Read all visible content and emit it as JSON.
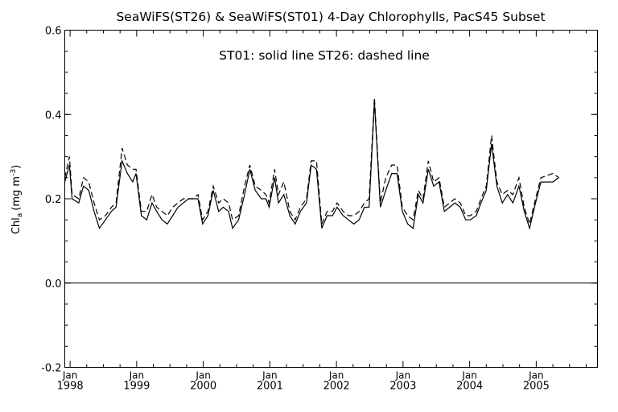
{
  "chart_data": {
    "type": "line",
    "title": "SeaWiFS(ST26) & SeaWiFS(ST01) 4-Day Chlorophylls, PacS45 Subset",
    "annotation": "ST01: solid line    ST26: dashed line",
    "ylabel_main": "Chl",
    "ylabel_sub": "a",
    "ylabel_unit": "(mg m",
    "ylabel_exp": "-3",
    "ylabel_close": ")",
    "xlim": [
      1997.92,
      2005.92
    ],
    "ylim": [
      -0.2,
      0.6
    ],
    "yticks": [
      -0.2,
      0.0,
      0.2,
      0.4,
      0.6
    ],
    "ytick_labels": [
      "-0.2",
      "0.0",
      "0.2",
      "0.4",
      "0.6"
    ],
    "xticks": [
      1998,
      1999,
      2000,
      2001,
      2002,
      2003,
      2004,
      2005
    ],
    "xtick_month_label": "Jan",
    "xtick_year_labels": [
      "1998",
      "1999",
      "2000",
      "2001",
      "2002",
      "2003",
      "2004",
      "2005"
    ],
    "reference_line_y": 0.0,
    "series": [
      {
        "name": "ST01",
        "style": "solid",
        "color": "#000000",
        "points": [
          [
            1997.92,
            0.24
          ],
          [
            1997.99,
            0.28
          ],
          [
            1998.03,
            0.2
          ],
          [
            1998.13,
            0.19
          ],
          [
            1998.2,
            0.23
          ],
          [
            1998.28,
            0.22
          ],
          [
            1998.36,
            0.17
          ],
          [
            1998.44,
            0.13
          ],
          [
            1998.53,
            0.15
          ],
          [
            1998.62,
            0.17
          ],
          [
            1998.69,
            0.18
          ],
          [
            1998.78,
            0.29
          ],
          [
            1998.86,
            0.26
          ],
          [
            1998.94,
            0.24
          ],
          [
            1998.99,
            0.26
          ],
          [
            1999.07,
            0.16
          ],
          [
            1999.15,
            0.15
          ],
          [
            1999.23,
            0.19
          ],
          [
            1999.3,
            0.17
          ],
          [
            1999.38,
            0.15
          ],
          [
            1999.46,
            0.14
          ],
          [
            1999.54,
            0.16
          ],
          [
            1999.62,
            0.18
          ],
          [
            1999.7,
            0.19
          ],
          [
            1999.78,
            0.2
          ],
          [
            1999.84,
            0.2
          ],
          [
            1999.92,
            0.2
          ],
          [
            1999.99,
            0.14
          ],
          [
            2000.07,
            0.16
          ],
          [
            2000.15,
            0.22
          ],
          [
            2000.23,
            0.17
          ],
          [
            2000.3,
            0.18
          ],
          [
            2000.38,
            0.17
          ],
          [
            2000.44,
            0.13
          ],
          [
            2000.53,
            0.15
          ],
          [
            2000.62,
            0.21
          ],
          [
            2000.7,
            0.27
          ],
          [
            2000.78,
            0.22
          ],
          [
            2000.87,
            0.2
          ],
          [
            2000.94,
            0.2
          ],
          [
            2000.99,
            0.18
          ],
          [
            2001.07,
            0.25
          ],
          [
            2001.13,
            0.19
          ],
          [
            2001.21,
            0.21
          ],
          [
            2001.3,
            0.16
          ],
          [
            2001.38,
            0.14
          ],
          [
            2001.46,
            0.17
          ],
          [
            2001.55,
            0.19
          ],
          [
            2001.62,
            0.28
          ],
          [
            2001.7,
            0.27
          ],
          [
            2001.78,
            0.13
          ],
          [
            2001.86,
            0.16
          ],
          [
            2001.94,
            0.16
          ],
          [
            2002.01,
            0.18
          ],
          [
            2002.1,
            0.16
          ],
          [
            2002.18,
            0.15
          ],
          [
            2002.26,
            0.14
          ],
          [
            2002.34,
            0.15
          ],
          [
            2002.42,
            0.18
          ],
          [
            2002.49,
            0.18
          ],
          [
            2002.57,
            0.43
          ],
          [
            2002.66,
            0.18
          ],
          [
            2002.74,
            0.22
          ],
          [
            2002.83,
            0.26
          ],
          [
            2002.91,
            0.26
          ],
          [
            2002.99,
            0.17
          ],
          [
            2003.07,
            0.14
          ],
          [
            2003.15,
            0.13
          ],
          [
            2003.23,
            0.21
          ],
          [
            2003.3,
            0.19
          ],
          [
            2003.38,
            0.27
          ],
          [
            2003.46,
            0.23
          ],
          [
            2003.54,
            0.24
          ],
          [
            2003.62,
            0.17
          ],
          [
            2003.7,
            0.18
          ],
          [
            2003.78,
            0.19
          ],
          [
            2003.86,
            0.18
          ],
          [
            2003.94,
            0.15
          ],
          [
            2004.01,
            0.15
          ],
          [
            2004.1,
            0.16
          ],
          [
            2004.17,
            0.19
          ],
          [
            2004.25,
            0.22
          ],
          [
            2004.33,
            0.33
          ],
          [
            2004.41,
            0.23
          ],
          [
            2004.49,
            0.19
          ],
          [
            2004.57,
            0.21
          ],
          [
            2004.65,
            0.19
          ],
          [
            2004.74,
            0.23
          ],
          [
            2004.82,
            0.17
          ],
          [
            2004.9,
            0.13
          ],
          [
            2004.99,
            0.19
          ],
          [
            2005.07,
            0.24
          ],
          [
            2005.25,
            0.24
          ],
          [
            2005.34,
            0.25
          ]
        ]
      },
      {
        "name": "ST26",
        "style": "dashed",
        "color": "#000000",
        "points": [
          [
            1997.92,
            0.25
          ],
          [
            1997.99,
            0.3
          ],
          [
            1998.03,
            0.21
          ],
          [
            1998.13,
            0.2
          ],
          [
            1998.2,
            0.25
          ],
          [
            1998.28,
            0.24
          ],
          [
            1998.36,
            0.19
          ],
          [
            1998.44,
            0.15
          ],
          [
            1998.53,
            0.16
          ],
          [
            1998.62,
            0.18
          ],
          [
            1998.69,
            0.19
          ],
          [
            1998.78,
            0.32
          ],
          [
            1998.86,
            0.28
          ],
          [
            1998.94,
            0.27
          ],
          [
            1998.99,
            0.27
          ],
          [
            1999.07,
            0.17
          ],
          [
            1999.15,
            0.17
          ],
          [
            1999.23,
            0.21
          ],
          [
            1999.3,
            0.18
          ],
          [
            1999.38,
            0.17
          ],
          [
            1999.46,
            0.16
          ],
          [
            1999.54,
            0.18
          ],
          [
            1999.62,
            0.19
          ],
          [
            1999.7,
            0.2
          ],
          [
            1999.78,
            0.2
          ],
          [
            1999.84,
            0.2
          ],
          [
            1999.92,
            0.21
          ],
          [
            1999.99,
            0.15
          ],
          [
            2000.07,
            0.17
          ],
          [
            2000.15,
            0.23
          ],
          [
            2000.23,
            0.19
          ],
          [
            2000.3,
            0.2
          ],
          [
            2000.38,
            0.19
          ],
          [
            2000.44,
            0.15
          ],
          [
            2000.53,
            0.16
          ],
          [
            2000.62,
            0.23
          ],
          [
            2000.7,
            0.28
          ],
          [
            2000.78,
            0.23
          ],
          [
            2000.87,
            0.22
          ],
          [
            2000.94,
            0.21
          ],
          [
            2000.99,
            0.19
          ],
          [
            2001.07,
            0.27
          ],
          [
            2001.13,
            0.21
          ],
          [
            2001.21,
            0.24
          ],
          [
            2001.3,
            0.17
          ],
          [
            2001.38,
            0.15
          ],
          [
            2001.46,
            0.18
          ],
          [
            2001.55,
            0.2
          ],
          [
            2001.62,
            0.29
          ],
          [
            2001.7,
            0.29
          ],
          [
            2001.78,
            0.14
          ],
          [
            2001.86,
            0.17
          ],
          [
            2001.94,
            0.17
          ],
          [
            2002.01,
            0.19
          ],
          [
            2002.1,
            0.17
          ],
          [
            2002.18,
            0.16
          ],
          [
            2002.26,
            0.16
          ],
          [
            2002.34,
            0.17
          ],
          [
            2002.42,
            0.19
          ],
          [
            2002.49,
            0.2
          ],
          [
            2002.57,
            0.44
          ],
          [
            2002.66,
            0.19
          ],
          [
            2002.74,
            0.25
          ],
          [
            2002.83,
            0.28
          ],
          [
            2002.91,
            0.28
          ],
          [
            2002.99,
            0.18
          ],
          [
            2003.07,
            0.16
          ],
          [
            2003.15,
            0.15
          ],
          [
            2003.23,
            0.22
          ],
          [
            2003.3,
            0.2
          ],
          [
            2003.38,
            0.29
          ],
          [
            2003.46,
            0.24
          ],
          [
            2003.54,
            0.25
          ],
          [
            2003.62,
            0.18
          ],
          [
            2003.7,
            0.19
          ],
          [
            2003.78,
            0.2
          ],
          [
            2003.86,
            0.19
          ],
          [
            2003.94,
            0.16
          ],
          [
            2004.01,
            0.16
          ],
          [
            2004.1,
            0.17
          ],
          [
            2004.17,
            0.2
          ],
          [
            2004.25,
            0.23
          ],
          [
            2004.33,
            0.35
          ],
          [
            2004.41,
            0.24
          ],
          [
            2004.49,
            0.21
          ],
          [
            2004.57,
            0.22
          ],
          [
            2004.65,
            0.21
          ],
          [
            2004.74,
            0.25
          ],
          [
            2004.82,
            0.18
          ],
          [
            2004.9,
            0.14
          ],
          [
            2004.99,
            0.2
          ],
          [
            2005.07,
            0.25
          ],
          [
            2005.25,
            0.26
          ],
          [
            2005.34,
            0.25
          ]
        ]
      }
    ],
    "grid": false
  }
}
